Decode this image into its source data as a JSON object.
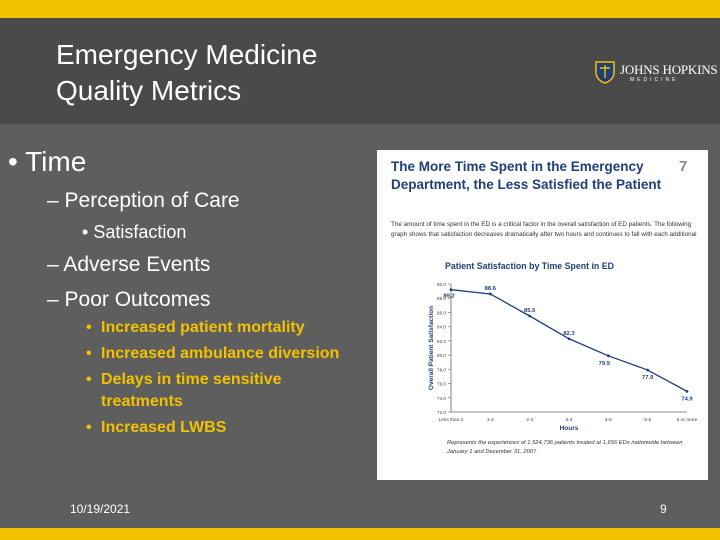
{
  "slide": {
    "title_line1": "Emergency Medicine",
    "title_line2": "Quality Metrics",
    "date": "10/19/2021",
    "page_number": "9"
  },
  "logo": {
    "name": "JOHNS HOPKINS",
    "sub": "MEDICINE"
  },
  "bullets": {
    "time": "Time",
    "perception": "Perception of Care",
    "satisfaction": "Satisfaction",
    "adverse": "Adverse Events",
    "poor": "Poor Outcomes",
    "outcomes": [
      "Increased patient mortality",
      "Increased ambulance diversion",
      "Delays in time sensitive treatments",
      "Increased LWBS"
    ]
  },
  "panel": {
    "title_line1": "The More Time Spent in the Emergency",
    "title_line2": "Department, the Less Satisfied the Patient",
    "number": "7",
    "description": "The amount of time spent in the ED is a critical factor in the overall satisfaction of ED patients. The following graph shows that satisfaction decreases dramatically after two hours and continues to fall with each additional hour.",
    "note": "Represents the experiences of 1,524,736 patients treated at 1,656 EDs nationwide between January 1 and December 31, 2007"
  },
  "chart_data": {
    "type": "line",
    "title": "Patient Satisfaction by Time Spent in ED",
    "xlabel": "Hours",
    "ylabel": "Overall Patient Satisfaction",
    "categories": [
      "Less than 1",
      "1-2",
      "2-3",
      "3-4",
      "4-5",
      "5-6",
      "6 or more"
    ],
    "values": [
      89.2,
      88.6,
      85.5,
      82.3,
      79.9,
      77.9,
      74.9
    ],
    "value_labels": [
      "89.2",
      "88.6",
      "85.5",
      "82.3",
      "79.9",
      "77.9",
      "74.9"
    ],
    "yticks": [
      "90.0",
      "88.0",
      "86.0",
      "84.0",
      "82.0",
      "80.0",
      "78.0",
      "76.0",
      "74.0",
      "72.0"
    ],
    "ylim": [
      72,
      90
    ],
    "color": "#1e3f7a"
  }
}
